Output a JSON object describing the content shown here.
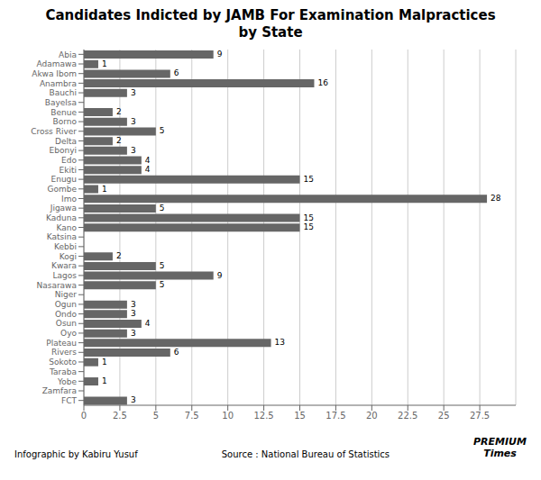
{
  "chart_data": {
    "type": "bar",
    "orientation": "horizontal",
    "title": "Candidates Indicted by JAMB For Examination Malpractices\nby State",
    "categories": [
      "Abia",
      "Adamawa",
      "Akwa Ibom",
      "Anambra",
      "Bauchi",
      "Bayelsa",
      "Benue",
      "Borno",
      "Cross River",
      "Delta",
      "Ebonyi",
      "Edo",
      "Ekiti",
      "Enugu",
      "Gombe",
      "Imo",
      "Jigawa",
      "Kaduna",
      "Kano",
      "Katsina",
      "Kebbi",
      "Kogi",
      "Kwara",
      "Lagos",
      "Nasarawa",
      "Niger",
      "Ogun",
      "Ondo",
      "Osun",
      "Oyo",
      "Plateau",
      "Rivers",
      "Sokoto",
      "Taraba",
      "Yobe",
      "Zamfara",
      "FCT"
    ],
    "values": [
      9,
      1,
      6,
      16,
      3,
      0,
      2,
      3,
      5,
      2,
      3,
      4,
      4,
      15,
      1,
      28,
      5,
      15,
      15,
      0,
      0,
      2,
      5,
      9,
      5,
      0,
      3,
      3,
      4,
      3,
      13,
      6,
      1,
      0,
      1,
      0,
      3
    ],
    "data_labels": true,
    "value_labels": [
      "9",
      "1",
      "6",
      "16",
      "3",
      null,
      "2",
      "3",
      "5",
      "2",
      "3",
      "4",
      "4",
      "15",
      "1",
      "28",
      "5",
      "15",
      "15",
      null,
      null,
      "2",
      "5",
      "9",
      "5",
      null,
      "3",
      "3",
      "4",
      "3",
      "13",
      "6",
      "1",
      null,
      "1",
      null,
      "3"
    ],
    "color": "#666666",
    "xlim": [
      0,
      30
    ],
    "xticks": [
      0,
      2.5,
      5,
      7.5,
      10,
      12.5,
      15,
      17.5,
      20,
      22.5,
      25,
      27.5
    ],
    "grid": true,
    "annotations": [
      "Infographic by Kabiru Yusuf",
      "Source : National Bureau of Statistics",
      "PREMIUM\nTimes"
    ]
  }
}
